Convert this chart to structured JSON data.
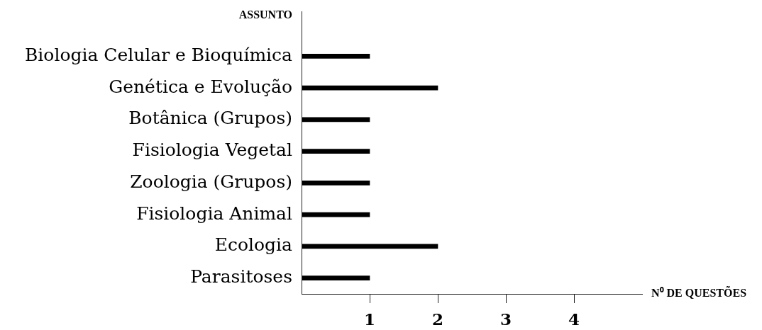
{
  "chart_data": {
    "type": "bar",
    "orientation": "horizontal",
    "categories": [
      "Biologia Celular e Bioquímica",
      "Genética e Evolução",
      "Botânica (Grupos)",
      "Fisiologia Vegetal",
      "Zoologia (Grupos)",
      "Fisiologia Animal",
      "Ecologia",
      "Parasitoses"
    ],
    "values": [
      1,
      2,
      1,
      1,
      1,
      1,
      2,
      1
    ],
    "color": "#000000",
    "xlim": [
      0,
      5
    ],
    "xticks": [
      1,
      2,
      3,
      4
    ],
    "xlabel": "N⁰ DE QUESTÕES",
    "ylabel": "ASSUNTO"
  }
}
